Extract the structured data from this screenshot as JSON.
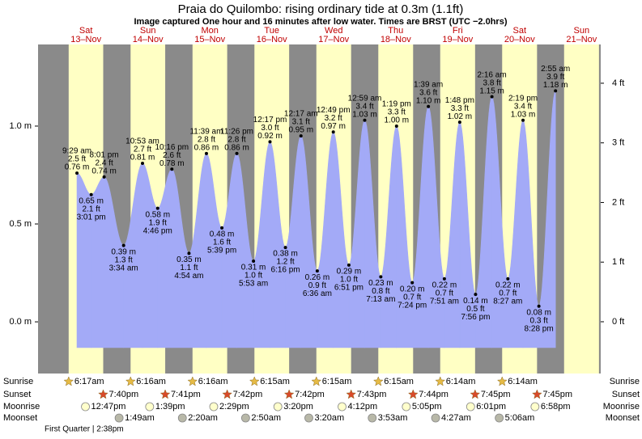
{
  "chart_data": {
    "type": "tide",
    "title": "Praia do Quilombo: rising  ordinary tide at 0.3m (1.1ft)",
    "subtitle": "Image captured One hour and 16 minutes after low water. Times are BRST (UTC −2.0hrs)",
    "days": [
      {
        "name": "Sat",
        "date": "13–Nov"
      },
      {
        "name": "Sun",
        "date": "14–Nov"
      },
      {
        "name": "Mon",
        "date": "15–Nov"
      },
      {
        "name": "Tue",
        "date": "16–Nov"
      },
      {
        "name": "Wed",
        "date": "17–Nov"
      },
      {
        "name": "Thu",
        "date": "18–Nov"
      },
      {
        "name": "Fri",
        "date": "19–Nov"
      },
      {
        "name": "Sat",
        "date": "20–Nov"
      },
      {
        "name": "Sun",
        "date": "21–Nov"
      }
    ],
    "row_labels": [
      "Sunrise",
      "Sunset",
      "Moonrise",
      "Moonset"
    ],
    "sunrise": [
      "6:17am",
      "6:16am",
      "6:16am",
      "6:15am",
      "6:15am",
      "6:15am",
      "6:14am",
      "6:14am"
    ],
    "sunset": [
      "7:40pm",
      "7:41pm",
      "7:42pm",
      "7:42pm",
      "7:43pm",
      "7:44pm",
      "7:45pm",
      "7:45pm"
    ],
    "moonrise": [
      "12:47pm",
      "1:39pm",
      "2:29pm",
      "3:20pm",
      "4:12pm",
      "5:05pm",
      "6:01pm",
      "6:58pm"
    ],
    "moonset": [
      null,
      "1:49am",
      "2:20am",
      "2:50am",
      "3:20am",
      "3:53am",
      "4:27am",
      "5:06am"
    ],
    "moon_phase": "First Quarter | 2:38pm",
    "times": [
      "9:29 am",
      "3:01 pm",
      "8:01 pm",
      "3:34 am",
      "10:53 am",
      "4:46 pm",
      "10:16 pm",
      "4:54 am",
      "11:39 am",
      "5:39 pm",
      "11:26 pm",
      "5:53 am",
      "12:17 pm",
      "6:16 pm",
      "12:17 am",
      "6:36 am",
      "12:49 pm",
      "6:51 pm",
      "12:59 am",
      "7:13 am",
      "1:19 pm",
      "7:24 pm",
      "1:39 am",
      "7:51 am",
      "1:48 pm",
      "7:56 pm",
      "2:16 am",
      "8:27 am",
      "2:19 pm",
      "8:28 pm",
      "2:55 am"
    ],
    "values": [
      0.76,
      0.65,
      0.74,
      0.39,
      0.81,
      0.58,
      0.78,
      0.35,
      0.86,
      0.48,
      0.86,
      0.31,
      0.92,
      0.38,
      0.95,
      0.26,
      0.97,
      0.29,
      1.03,
      0.23,
      1.0,
      0.2,
      1.1,
      0.22,
      1.02,
      0.14,
      1.15,
      0.22,
      1.03,
      0.08,
      1.18
    ],
    "value_labels": [
      "0.76 m",
      "0.65 m",
      "0.74 m",
      "0.39 m",
      "0.81 m",
      "0.58 m",
      "0.78 m",
      "0.35 m",
      "0.86 m",
      "0.48 m",
      "0.86 m",
      "0.31 m",
      "0.92 m",
      "0.38 m",
      "0.95 m",
      "0.26 m",
      "0.97 m",
      "0.29 m",
      "1.03 m",
      "0.23 m",
      "1.00 m",
      "0.20 m",
      "1.10 m",
      "0.22 m",
      "1.02 m",
      "0.14 m",
      "1.15 m",
      "0.22 m",
      "1.03 m",
      "0.08 m",
      "1.18 m"
    ],
    "ft_labels": [
      "2.5 ft",
      "2.1 ft",
      "2.4 ft",
      "1.3 ft",
      "2.7 ft",
      "1.9 ft",
      "2.6 ft",
      "1.1 ft",
      "2.8 ft",
      "1.6 ft",
      "2.8 ft",
      "1.0 ft",
      "3.0 ft",
      "1.2 ft",
      "3.1 ft",
      "0.9 ft",
      "3.2 ft",
      "1.0 ft",
      "3.4 ft",
      "0.8 ft",
      "3.3 ft",
      "0.7 ft",
      "3.6 ft",
      "0.7 ft",
      "3.3 ft",
      "0.5 ft",
      "3.8 ft",
      "0.7 ft",
      "3.4 ft",
      "0.3 ft",
      "3.9 ft"
    ],
    "ylim": [
      -0.264,
      1.417
    ],
    "yticks": [
      {
        "value": 0,
        "label": "0.0 m"
      },
      {
        "value": 0.5,
        "label": "0.5 m"
      },
      {
        "value": 1,
        "label": "1.0 m"
      }
    ],
    "y2lim": [
      -0.868,
      4.65
    ],
    "y2ticks": [
      {
        "value": 0,
        "label": "0 ft"
      },
      {
        "value": 1,
        "label": "1 ft"
      },
      {
        "value": 2,
        "label": "2 ft"
      },
      {
        "value": 3,
        "label": "3 ft"
      },
      {
        "value": 4,
        "label": "4 ft"
      }
    ],
    "color": "#a3aaf7",
    "night_color": "#8a8a8a",
    "day_color": "#ffffc4"
  }
}
